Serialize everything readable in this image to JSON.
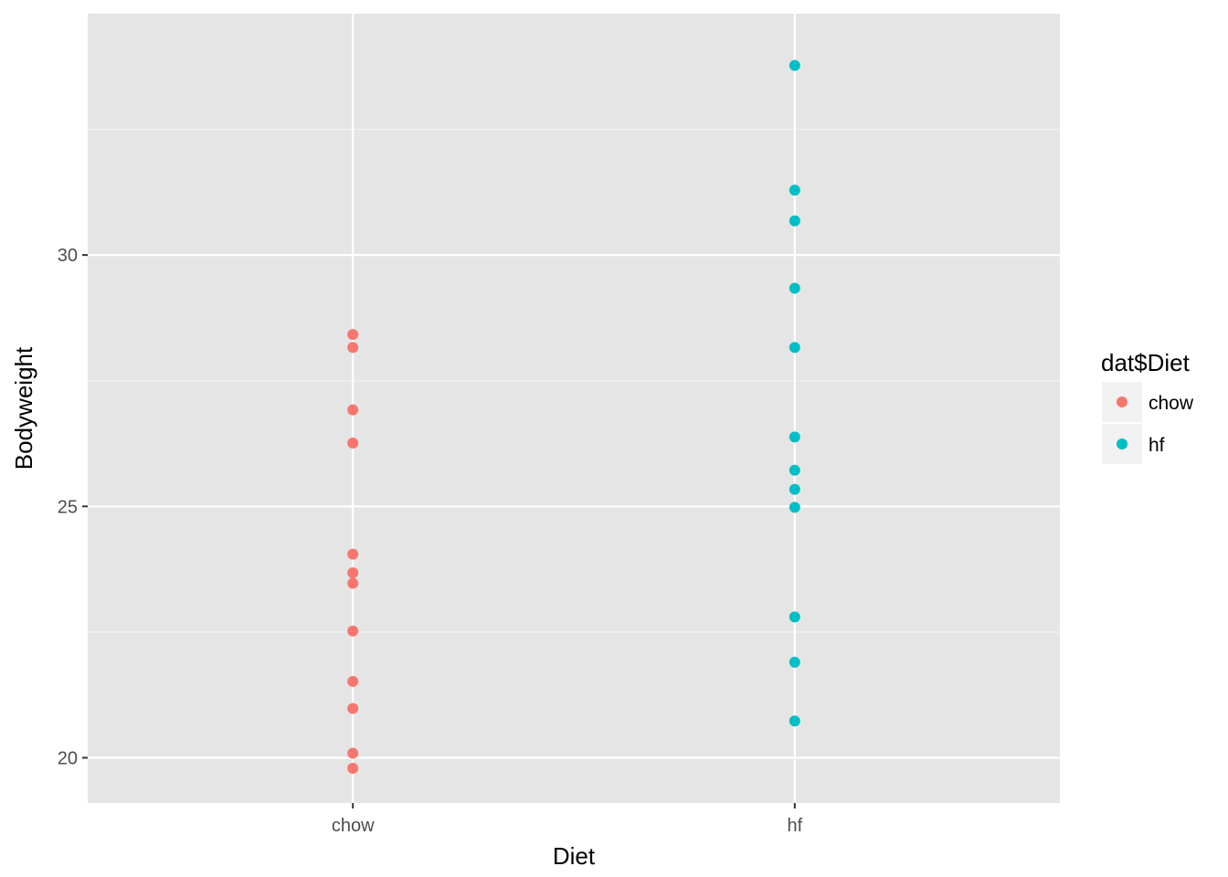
{
  "chart_data": {
    "type": "scatter",
    "xlabel": "Diet",
    "ylabel": "Bodyweight",
    "categories": [
      "chow",
      "hf"
    ],
    "ylim": [
      19.1,
      34.8
    ],
    "y_ticks": [
      20,
      25,
      30
    ],
    "y_tick_labels": [
      "20",
      "25",
      "30"
    ],
    "grid": true,
    "legend": {
      "title": "dat$Diet",
      "position": "right",
      "entries": [
        "chow",
        "hf"
      ]
    },
    "colors": {
      "chow": "#F8766D",
      "hf": "#00BFC4"
    },
    "series": [
      {
        "name": "chow",
        "x": "chow",
        "values": [
          28.42,
          28.16,
          26.92,
          26.26,
          24.05,
          23.68,
          23.47,
          22.52,
          21.52,
          20.98,
          20.09,
          19.79
        ]
      },
      {
        "name": "hf",
        "x": "hf",
        "values": [
          33.77,
          31.29,
          30.68,
          29.34,
          28.16,
          26.38,
          25.72,
          25.34,
          24.98,
          22.8,
          21.9,
          20.73
        ]
      }
    ]
  }
}
